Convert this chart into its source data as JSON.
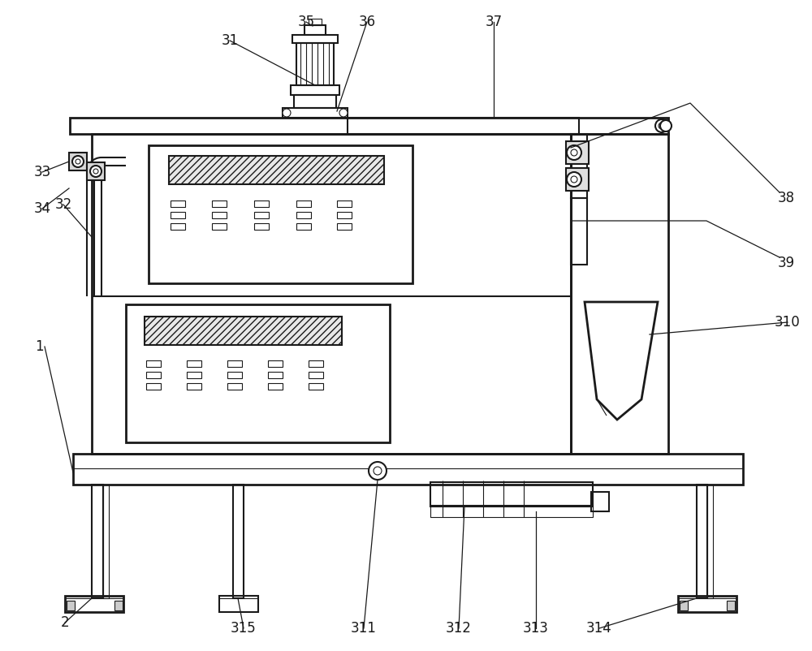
{
  "bg": "#ffffff",
  "lc": "#1a1a1a",
  "lw": 1.5,
  "lw2": 2.0,
  "lw3": 0.8
}
